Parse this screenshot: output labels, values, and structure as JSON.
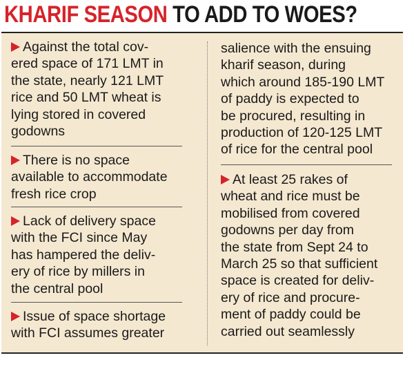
{
  "title": {
    "highlight": "KHARIF SEASON",
    "rest": "TO ADD TO WOES?"
  },
  "columns": [
    {
      "items": [
        {
          "lines": [
            "Against the total cov-",
            "ered space of 171 LMT in",
            "the state, nearly 121 LMT",
            "rice and 50 LMT wheat is",
            "lying stored in covered",
            "godowns"
          ]
        },
        {
          "lines": [
            "There is no space",
            "available to accommodate",
            "fresh rice crop"
          ]
        },
        {
          "lines": [
            "Lack of delivery space",
            "with the FCI since May",
            "has hampered the deliv-",
            "ery of rice by millers in",
            "the central pool"
          ]
        },
        {
          "lines": [
            "Issue of space shortage",
            "with FCI assumes greater"
          ]
        }
      ]
    },
    {
      "items": [
        {
          "lines": [
            "salience with the ensuing",
            "kharif season, during",
            "which around 185-190 LMT",
            "of paddy is expected to",
            "be procured, resulting in",
            "production of 120-125 LMT",
            "of rice for the central pool"
          ]
        },
        {
          "lines": [
            "At least 25 rakes of",
            "wheat and rice must be",
            "mobilised from covered",
            "godowns per day from",
            "the state from Sept 24 to",
            "March 25 so that sufficient",
            "space is created for deliv-",
            "ery of rice and procure-",
            "ment of paddy could be",
            "carried out seamlessly"
          ]
        }
      ]
    }
  ]
}
